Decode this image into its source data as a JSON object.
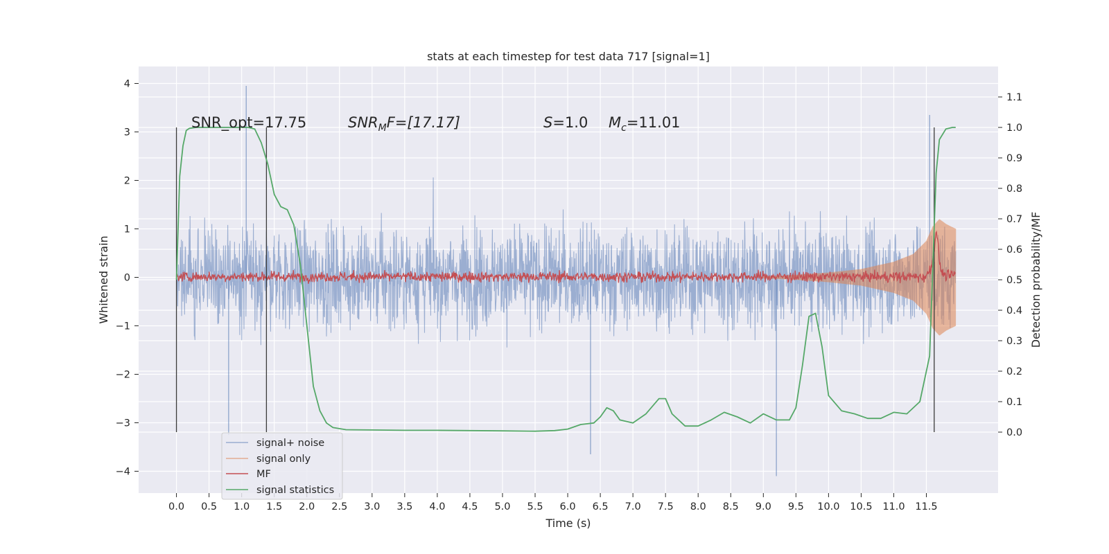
{
  "chart_data": {
    "type": "line",
    "title": "stats at each timestep for test data 717 [signal=1]",
    "xlabel": "Time (s)",
    "ylabel_left": "Whitened strain",
    "ylabel_right": "Detection probability/MF",
    "xlim": [
      -0.58,
      12.6
    ],
    "ylim_left": [
      -4.45,
      4.35
    ],
    "ylim_right": [
      -0.2,
      1.2
    ],
    "x_ticks": [
      0.0,
      0.5,
      1.0,
      1.5,
      2.0,
      2.5,
      3.0,
      3.5,
      4.0,
      4.5,
      5.0,
      5.5,
      6.0,
      6.5,
      7.0,
      7.5,
      8.0,
      8.5,
      9.0,
      9.5,
      10.0,
      10.5,
      11.0,
      11.5
    ],
    "x_tick_labels": [
      "0.0",
      "0.5",
      "1.0",
      "1.5",
      "2.0",
      "2.5",
      "3.0",
      "3.5",
      "4.0",
      "4.5",
      "5.0",
      "5.5",
      "6.0",
      "6.5",
      "7.0",
      "7.5",
      "8.0",
      "8.5",
      "9.0",
      "9.5",
      "10.0",
      "10.5",
      "11.0",
      "11.5"
    ],
    "y_left_ticks": [
      -4,
      -3,
      -2,
      -1,
      0,
      1,
      2,
      3,
      4
    ],
    "y_left_tick_labels": [
      "−4",
      "−3",
      "−2",
      "−1",
      "0",
      "1",
      "2",
      "3",
      "4"
    ],
    "y_right_ticks": [
      0.0,
      0.1,
      0.2,
      0.3,
      0.4,
      0.5,
      0.6,
      0.7,
      0.8,
      0.9,
      1.0,
      1.1
    ],
    "y_right_tick_labels": [
      "0.0",
      "0.1",
      "0.2",
      "0.3",
      "0.4",
      "0.5",
      "0.6",
      "0.7",
      "0.8",
      "0.9",
      "1.0",
      "1.1"
    ],
    "grid": true,
    "legend_position": "lower-left",
    "colors": {
      "background": "#eaeaf2",
      "grid": "#ffffff",
      "signal_noise": "#4c72b0",
      "signal_only": "#dd8452",
      "mf": "#c44e52",
      "signal_statistics": "#55a868",
      "marker_lines": "#3a3a3a"
    },
    "annotations": {
      "snr_opt": "SNR_opt=17.75",
      "snr_mf_main": "SNR",
      "snr_mf_sub": "M",
      "snr_mf_rest": "F=[17.17]",
      "s_symbol": "S",
      "s_value": "=1.0",
      "mc_symbol": "M",
      "mc_sub": "c",
      "mc_value": "=11.01"
    },
    "series": [
      {
        "name": "signal+ noise",
        "axis": "left",
        "style": "noise band",
        "x_range": [
          0.0,
          11.95
        ],
        "typical_amplitude": 1.7,
        "peak_values": [
          {
            "x": 1.07,
            "y": 3.95
          },
          {
            "x": 9.2,
            "y": -4.1
          },
          {
            "x": 6.35,
            "y": -3.65
          },
          {
            "x": 0.8,
            "y": -3.25
          },
          {
            "x": 11.55,
            "y": 3.35
          }
        ]
      },
      {
        "name": "signal only",
        "axis": "left",
        "style": "chirp envelope",
        "x": [
          9.0,
          9.5,
          10.0,
          10.5,
          11.0,
          11.3,
          11.5,
          11.6,
          11.7,
          11.8,
          11.95
        ],
        "envelope": [
          0.02,
          0.05,
          0.1,
          0.17,
          0.32,
          0.48,
          0.75,
          1.05,
          1.2,
          1.1,
          1.0
        ]
      },
      {
        "name": "MF",
        "axis": "right",
        "x": [
          0.0,
          1.0,
          2.0,
          3.0,
          4.0,
          5.0,
          6.0,
          7.0,
          8.0,
          9.0,
          10.0,
          11.0,
          11.5,
          11.6,
          11.65,
          11.72,
          11.8,
          11.95
        ],
        "y": [
          0.51,
          0.51,
          0.51,
          0.51,
          0.51,
          0.51,
          0.51,
          0.51,
          0.51,
          0.51,
          0.51,
          0.51,
          0.51,
          0.56,
          0.67,
          0.53,
          0.51,
          0.52
        ],
        "noise": 0.012
      },
      {
        "name": "signal statistics",
        "axis": "right",
        "x": [
          0.0,
          0.05,
          0.1,
          0.15,
          0.2,
          0.3,
          0.5,
          0.7,
          0.9,
          1.1,
          1.2,
          1.3,
          1.4,
          1.5,
          1.6,
          1.7,
          1.8,
          1.9,
          2.0,
          2.1,
          2.2,
          2.3,
          2.4,
          2.6,
          3.0,
          3.5,
          4.0,
          4.5,
          5.0,
          5.5,
          5.8,
          6.0,
          6.2,
          6.4,
          6.5,
          6.6,
          6.7,
          6.8,
          7.0,
          7.2,
          7.4,
          7.5,
          7.6,
          7.8,
          8.0,
          8.2,
          8.4,
          8.6,
          8.8,
          9.0,
          9.2,
          9.4,
          9.5,
          9.6,
          9.7,
          9.8,
          9.9,
          10.0,
          10.2,
          10.4,
          10.6,
          10.8,
          11.0,
          11.2,
          11.4,
          11.55,
          11.6,
          11.65,
          11.7,
          11.8,
          11.9,
          11.95
        ],
        "y": [
          0.5,
          0.84,
          0.94,
          0.99,
          0.997,
          1.0,
          1.0,
          1.0,
          1.0,
          1.0,
          0.995,
          0.95,
          0.88,
          0.78,
          0.74,
          0.73,
          0.68,
          0.55,
          0.35,
          0.15,
          0.07,
          0.03,
          0.015,
          0.008,
          0.007,
          0.006,
          0.006,
          0.005,
          0.004,
          0.003,
          0.005,
          0.01,
          0.025,
          0.03,
          0.05,
          0.08,
          0.07,
          0.04,
          0.03,
          0.06,
          0.11,
          0.11,
          0.06,
          0.02,
          0.02,
          0.04,
          0.065,
          0.05,
          0.03,
          0.06,
          0.04,
          0.04,
          0.08,
          0.22,
          0.38,
          0.39,
          0.28,
          0.12,
          0.07,
          0.06,
          0.045,
          0.045,
          0.065,
          0.06,
          0.1,
          0.25,
          0.55,
          0.85,
          0.96,
          0.995,
          1.0,
          1.0
        ]
      }
    ],
    "marker_lines_x": [
      0.0,
      1.38,
      11.62
    ]
  }
}
